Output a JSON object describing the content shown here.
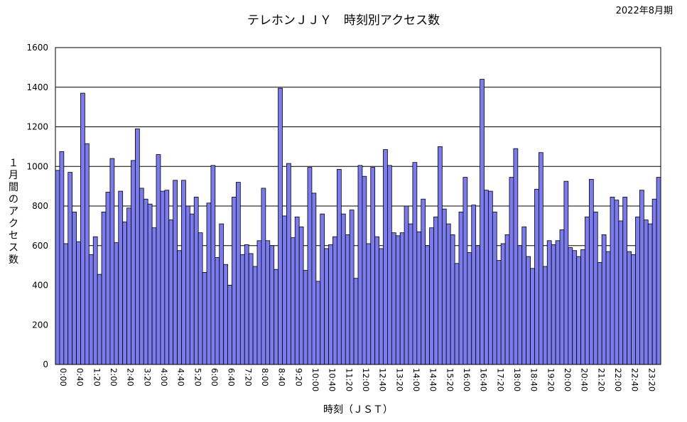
{
  "chart_data": {
    "type": "bar",
    "title": "テレホンＪＪＹ　時刻別アクセス数",
    "period_label": "2022年8月期",
    "xlabel": "時刻（ＪＳＴ）",
    "ylabel": "１月間のアクセス数",
    "ylim": [
      0,
      1600
    ],
    "yticks": [
      0,
      200,
      400,
      600,
      800,
      1000,
      1200,
      1400,
      1600
    ],
    "grid": true,
    "bar_color": "#7b7bee",
    "bar_interval": "10 min",
    "x_ticks": [
      "0:00",
      "0:40",
      "1:20",
      "2:00",
      "2:40",
      "3:20",
      "4:00",
      "4:40",
      "5:20",
      "6:00",
      "6:40",
      "7:20",
      "8:00",
      "8:40",
      "9:20",
      "10:00",
      "10:40",
      "11:20",
      "12:00",
      "12:40",
      "13:20",
      "14:00",
      "14:40",
      "15:20",
      "16:00",
      "16:40",
      "17:20",
      "18:00",
      "18:40",
      "19:20",
      "20:00",
      "20:40",
      "21:20",
      "22:00",
      "22:40",
      "23:20"
    ],
    "values": [
      980,
      1075,
      610,
      970,
      770,
      620,
      1370,
      1115,
      555,
      645,
      455,
      770,
      870,
      1040,
      615,
      875,
      720,
      790,
      1030,
      1190,
      890,
      835,
      810,
      690,
      1060,
      875,
      880,
      730,
      930,
      575,
      930,
      800,
      760,
      845,
      665,
      465,
      815,
      1005,
      540,
      710,
      505,
      400,
      845,
      920,
      555,
      605,
      560,
      495,
      625,
      890,
      625,
      600,
      480,
      1395,
      750,
      1015,
      640,
      745,
      695,
      475,
      995,
      865,
      420,
      760,
      585,
      605,
      645,
      985,
      760,
      655,
      780,
      435,
      1005,
      950,
      610,
      995,
      645,
      585,
      1085,
      1005,
      665,
      650,
      665,
      800,
      710,
      1020,
      670,
      835,
      600,
      690,
      745,
      1100,
      785,
      710,
      655,
      510,
      770,
      945,
      565,
      805,
      600,
      1440,
      880,
      875,
      770,
      525,
      610,
      655,
      945,
      1090,
      600,
      695,
      545,
      485,
      885,
      1070,
      495,
      625,
      605,
      625,
      680,
      925,
      590,
      575,
      545,
      580,
      745,
      935,
      770,
      515,
      655,
      570,
      845,
      830,
      725,
      845,
      570,
      555,
      745,
      880,
      730,
      710,
      835,
      945
    ]
  }
}
